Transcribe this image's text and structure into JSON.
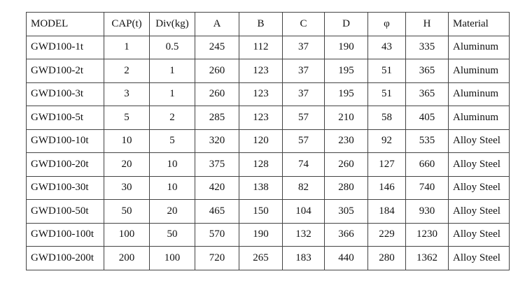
{
  "table": {
    "header": [
      "MODEL",
      "CAP(t)",
      "Div(kg)",
      "A",
      "B",
      "C",
      "D",
      "φ",
      "H",
      "Material"
    ],
    "rows": [
      [
        "GWD100-1t",
        "1",
        "0.5",
        "245",
        "112",
        "37",
        "190",
        "43",
        "335",
        "Aluminum"
      ],
      [
        "GWD100-2t",
        "2",
        "1",
        "260",
        "123",
        "37",
        "195",
        "51",
        "365",
        "Aluminum"
      ],
      [
        "GWD100-3t",
        "3",
        "1",
        "260",
        "123",
        "37",
        "195",
        "51",
        "365",
        "Aluminum"
      ],
      [
        "GWD100-5t",
        "5",
        "2",
        "285",
        "123",
        "57",
        "210",
        "58",
        "405",
        "Aluminum"
      ],
      [
        "GWD100-10t",
        "10",
        "5",
        "320",
        "120",
        "57",
        "230",
        "92",
        "535",
        "Alloy Steel"
      ],
      [
        "GWD100-20t",
        "20",
        "10",
        "375",
        "128",
        "74",
        "260",
        "127",
        "660",
        "Alloy Steel"
      ],
      [
        "GWD100-30t",
        "30",
        "10",
        "420",
        "138",
        "82",
        "280",
        "146",
        "740",
        "Alloy Steel"
      ],
      [
        "GWD100-50t",
        "50",
        "20",
        "465",
        "150",
        "104",
        "305",
        "184",
        "930",
        "Alloy Steel"
      ],
      [
        "GWD100-100t",
        "100",
        "50",
        "570",
        "190",
        "132",
        "366",
        "229",
        "1230",
        "Alloy Steel"
      ],
      [
        "GWD100-200t",
        "200",
        "100",
        "720",
        "265",
        "183",
        "440",
        "280",
        "1362",
        "Alloy Steel"
      ]
    ]
  }
}
